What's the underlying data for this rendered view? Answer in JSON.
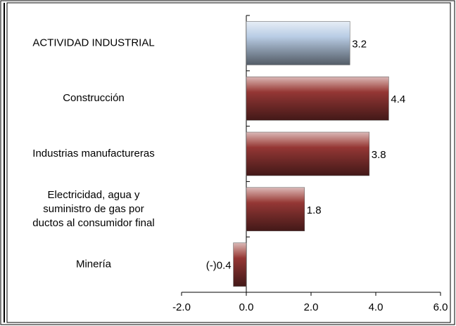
{
  "chart_data": {
    "type": "hbar",
    "categories": [
      "ACTIVIDAD INDUSTRIAL",
      "Construcción",
      "Industrias manufactureras",
      [
        "Electricidad, agua y",
        "suministro de gas por",
        "ductos al consumidor final"
      ],
      "Minería"
    ],
    "values": [
      3.2,
      4.4,
      3.8,
      1.8,
      -0.4
    ],
    "value_labels": [
      "3.2",
      "4.4",
      "3.8",
      "1.8",
      "(-)0.4"
    ],
    "colors": [
      "#b9cde5",
      "#953735",
      "#953735",
      "#953735",
      "#953735"
    ],
    "xlim": [
      -2,
      6
    ],
    "xticks": [
      {
        "value": -2,
        "label": "-2.0"
      },
      {
        "value": 0,
        "label": "0.0"
      },
      {
        "value": 2,
        "label": "2.0"
      },
      {
        "value": 4,
        "label": "4.0"
      },
      {
        "value": 6,
        "label": "6.0"
      }
    ]
  }
}
